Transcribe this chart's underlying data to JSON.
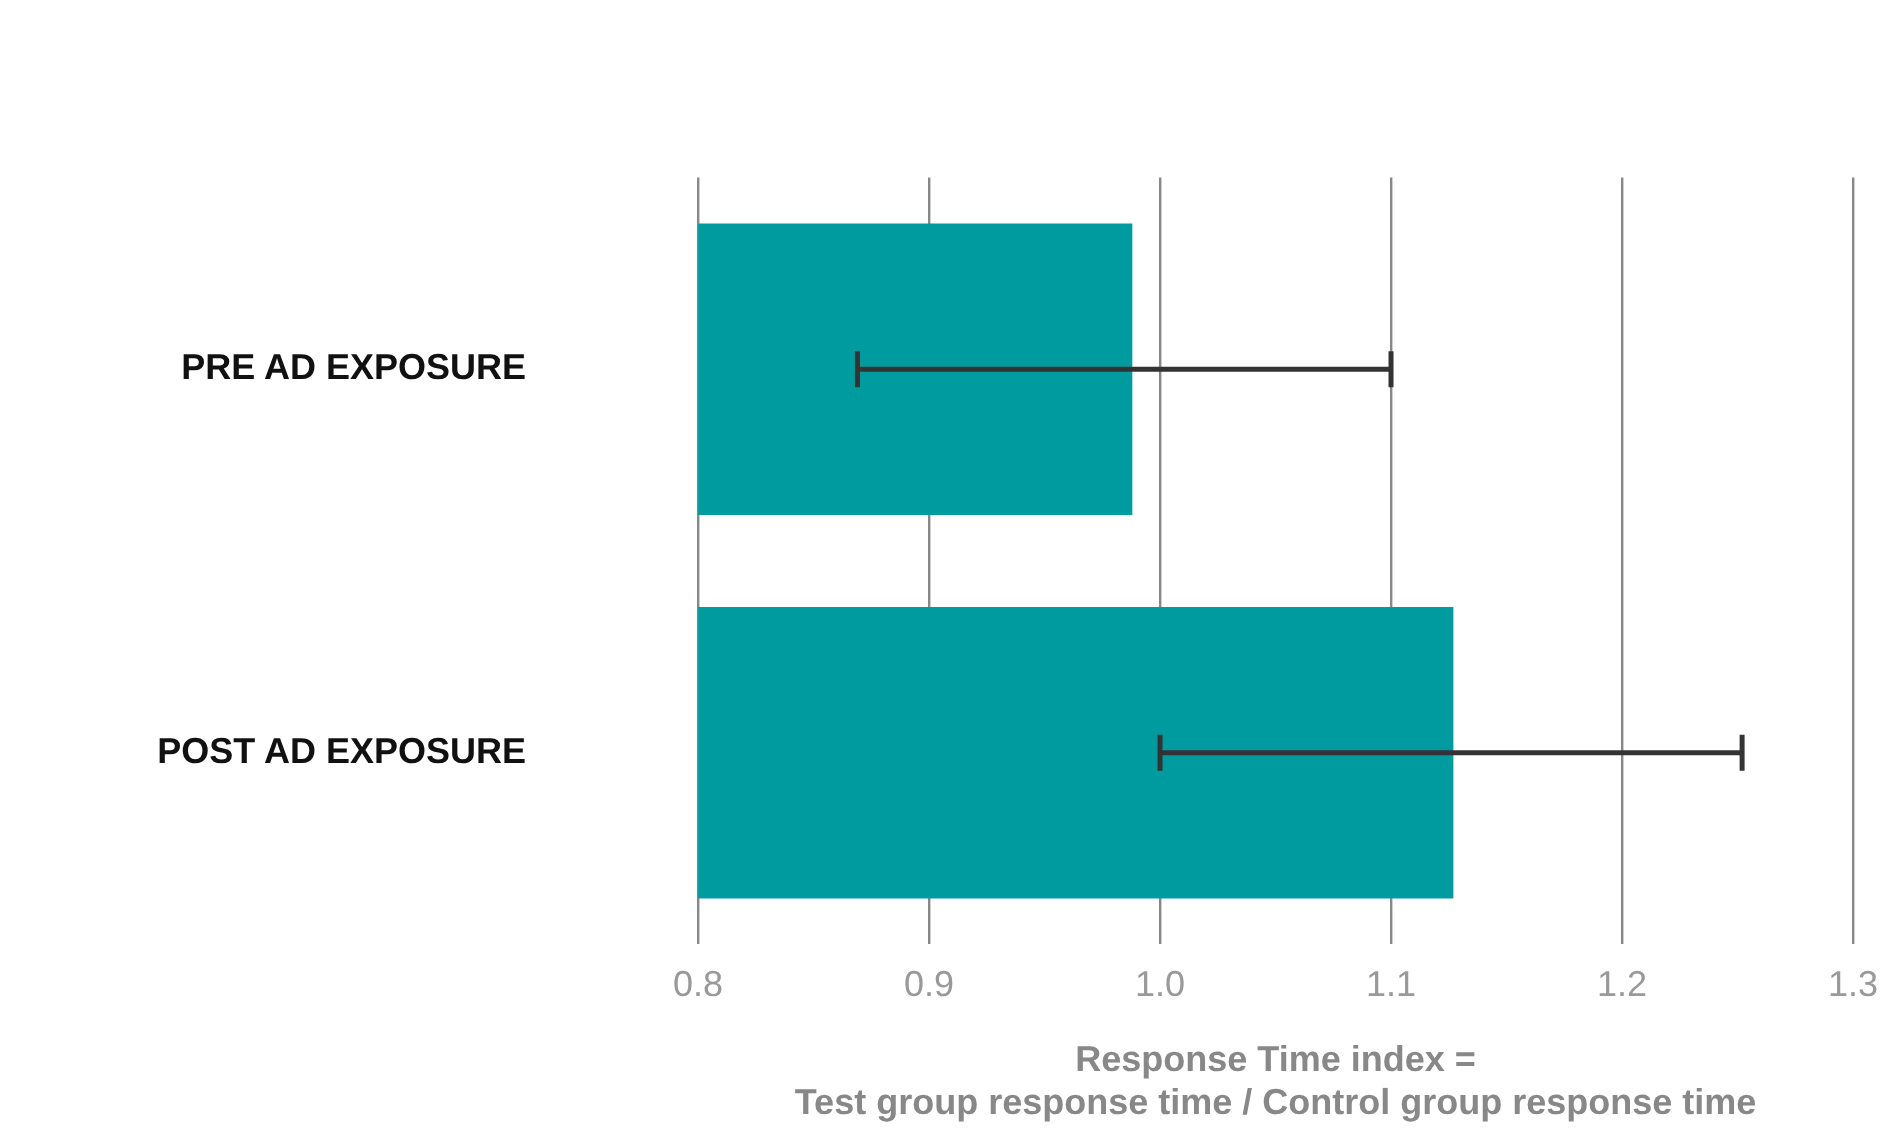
{
  "chart_data": {
    "type": "bar",
    "orientation": "horizontal",
    "xlabel": "Response Time index =\nTest group response time / Control group response time",
    "categories": [
      "PRE AD EXPOSURE",
      "POST AD EXPOSURE"
    ],
    "series": [
      {
        "color": "#009b9e",
        "values": [
          0.988,
          1.127
        ],
        "errors": [
          [
            0.869,
            1.1
          ],
          [
            1.0,
            1.252
          ]
        ]
      }
    ],
    "xlim": [
      0.8,
      1.3
    ],
    "xticks": [
      {
        "value": 0.8,
        "label": "0.8"
      },
      {
        "value": 0.9,
        "label": "0.9"
      },
      {
        "value": 1.0,
        "label": "1.0"
      },
      {
        "value": 1.1,
        "label": "1.1"
      },
      {
        "value": 1.2,
        "label": "1.2"
      },
      {
        "value": 1.3,
        "label": "1.3"
      }
    ],
    "grid": "x",
    "legend": false
  }
}
